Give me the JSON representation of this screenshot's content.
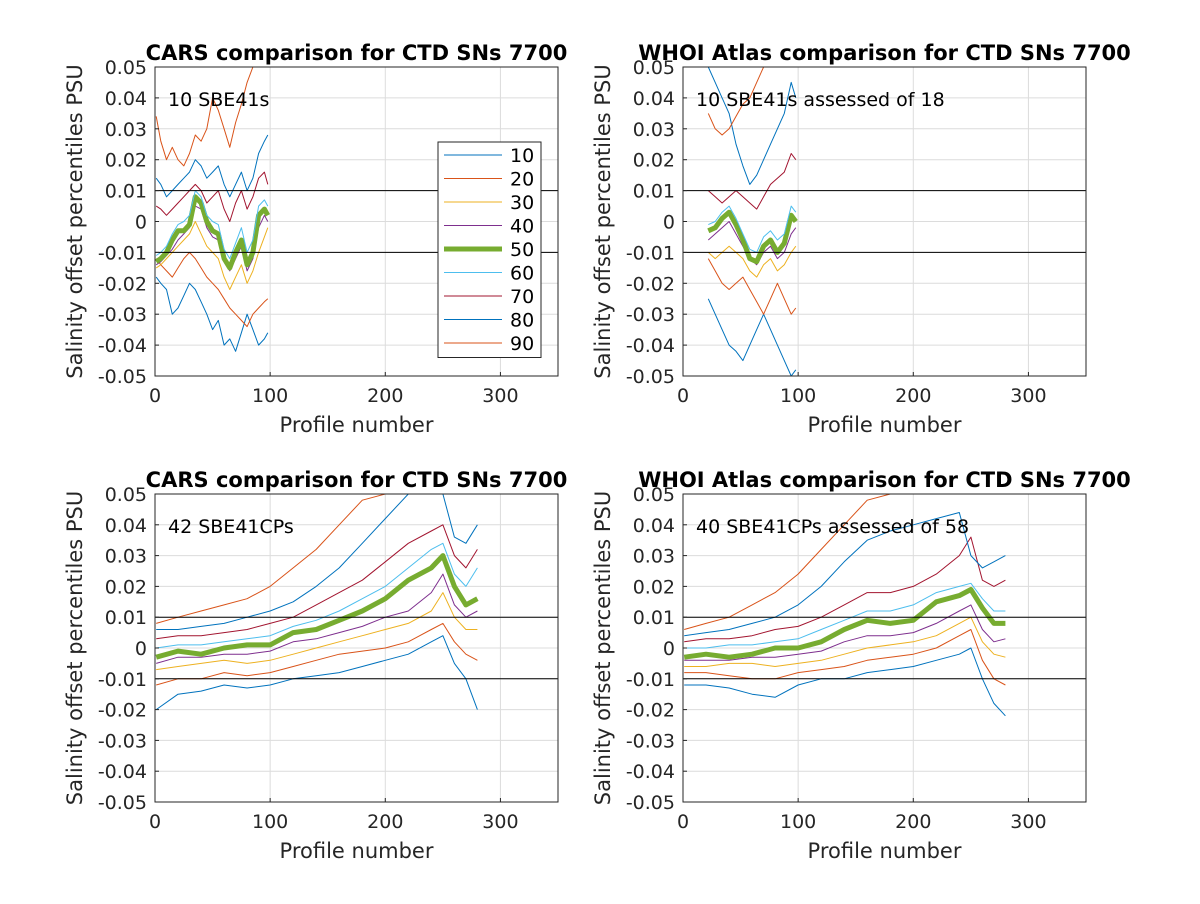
{
  "colors": {
    "p10": "#0072BD",
    "p20": "#D95319",
    "p30": "#EDB120",
    "p40": "#7E2F8E",
    "p50": "#77AC30",
    "p60": "#4DBEEE",
    "p70": "#A2142F",
    "p80": "#0072BD",
    "p90": "#D95319",
    "grid": "#dcdcdc",
    "axis": "#262626"
  },
  "legend": {
    "entries": [
      "10",
      "20",
      "30",
      "40",
      "50",
      "60",
      "70",
      "80",
      "90"
    ],
    "placement": "inside right of top-left panel"
  },
  "chart_data": [
    {
      "type": "line",
      "panel": "top-left",
      "title": "CARS comparison for CTD SNs 7700",
      "annotation": "10 SBE41s",
      "xlabel": "Profile number",
      "ylabel": "Salinity offset percentiles PSU",
      "xlim": [
        0,
        350
      ],
      "ylim": [
        -0.05,
        0.05
      ],
      "xticks": [
        "0",
        "100",
        "200",
        "300"
      ],
      "yticks": [
        "-0.05",
        "-0.04",
        "-0.03",
        "-0.02",
        "-0.01",
        "0",
        "0.01",
        "0.02",
        "0.03",
        "0.04",
        "0.05"
      ],
      "reference_lines": [
        0.01,
        -0.01
      ],
      "grid": true,
      "x": [
        1,
        5,
        10,
        15,
        20,
        25,
        30,
        35,
        40,
        45,
        50,
        55,
        60,
        65,
        70,
        75,
        80,
        85,
        90,
        95,
        98
      ],
      "series": [
        {
          "percentile": "10",
          "values": [
            -0.018,
            -0.02,
            -0.022,
            -0.03,
            -0.028,
            -0.024,
            -0.02,
            -0.022,
            -0.026,
            -0.03,
            -0.035,
            -0.032,
            -0.04,
            -0.038,
            -0.042,
            -0.036,
            -0.03,
            -0.035,
            -0.04,
            -0.038,
            -0.036
          ]
        },
        {
          "percentile": "20",
          "values": [
            -0.012,
            -0.014,
            -0.016,
            -0.018,
            -0.015,
            -0.012,
            -0.01,
            -0.012,
            -0.015,
            -0.018,
            -0.02,
            -0.022,
            -0.025,
            -0.028,
            -0.03,
            -0.032,
            -0.034,
            -0.03,
            -0.028,
            -0.026,
            -0.025
          ]
        },
        {
          "percentile": "30",
          "values": [
            -0.015,
            -0.014,
            -0.012,
            -0.01,
            -0.008,
            -0.006,
            -0.004,
            0,
            -0.004,
            -0.008,
            -0.01,
            -0.012,
            -0.018,
            -0.022,
            -0.018,
            -0.014,
            -0.02,
            -0.016,
            -0.01,
            -0.005,
            -0.002
          ]
        },
        {
          "percentile": "40",
          "values": [
            -0.014,
            -0.013,
            -0.011,
            -0.009,
            -0.006,
            -0.004,
            -0.002,
            0.005,
            0.004,
            -0.002,
            -0.005,
            -0.006,
            -0.013,
            -0.016,
            -0.012,
            -0.008,
            -0.016,
            -0.012,
            -0.002,
            0.002,
            0.0
          ]
        },
        {
          "percentile": "50",
          "values": [
            -0.013,
            -0.012,
            -0.01,
            -0.006,
            -0.003,
            -0.003,
            -0.001,
            0.008,
            0.006,
            0.0,
            -0.003,
            -0.004,
            -0.012,
            -0.015,
            -0.01,
            -0.006,
            -0.014,
            -0.01,
            0.002,
            0.004,
            0.002
          ]
        },
        {
          "percentile": "60",
          "values": [
            -0.011,
            -0.01,
            -0.008,
            -0.004,
            -0.001,
            0.0,
            0.002,
            0.01,
            0.008,
            0.002,
            0.0,
            -0.001,
            -0.009,
            -0.012,
            -0.007,
            -0.002,
            -0.01,
            -0.006,
            0.005,
            0.007,
            0.005
          ]
        },
        {
          "percentile": "70",
          "values": [
            0.005,
            0.004,
            0.002,
            0.004,
            0.006,
            0.008,
            0.01,
            0.012,
            0.01,
            0.006,
            0.008,
            0.01,
            0.004,
            0.0,
            0.006,
            0.01,
            0.004,
            0.008,
            0.014,
            0.016,
            0.012
          ]
        },
        {
          "percentile": "80",
          "values": [
            0.014,
            0.012,
            0.008,
            0.01,
            0.012,
            0.014,
            0.016,
            0.02,
            0.018,
            0.014,
            0.016,
            0.018,
            0.012,
            0.008,
            0.012,
            0.016,
            0.01,
            0.014,
            0.022,
            0.026,
            0.028
          ]
        },
        {
          "percentile": "90",
          "values": [
            0.034,
            0.026,
            0.02,
            0.024,
            0.02,
            0.018,
            0.022,
            0.028,
            0.026,
            0.03,
            0.04,
            0.036,
            0.03,
            0.024,
            0.032,
            0.038,
            0.045,
            0.05,
            0.05,
            0.05,
            0.05
          ]
        }
      ]
    },
    {
      "type": "line",
      "panel": "top-right",
      "title": "WHOI Atlas comparison for CTD SNs 7700",
      "annotation": "10 SBE41s assessed of 18",
      "xlabel": "Profile number",
      "ylabel": "Salinity offset percentiles PSU",
      "xlim": [
        0,
        350
      ],
      "ylim": [
        -0.05,
        0.05
      ],
      "xticks": [
        "0",
        "100",
        "200",
        "300"
      ],
      "yticks": [
        "-0.05",
        "-0.04",
        "-0.03",
        "-0.02",
        "-0.01",
        "0",
        "0.01",
        "0.02",
        "0.03",
        "0.04",
        "0.05"
      ],
      "reference_lines": [
        0.01,
        -0.01
      ],
      "grid": true,
      "x": [
        22,
        28,
        34,
        40,
        46,
        52,
        58,
        64,
        70,
        76,
        82,
        88,
        94,
        98
      ],
      "series": [
        {
          "percentile": "10",
          "values": [
            -0.025,
            -0.03,
            -0.035,
            -0.04,
            -0.042,
            -0.045,
            -0.04,
            -0.035,
            -0.03,
            -0.035,
            -0.04,
            -0.045,
            -0.05,
            -0.048
          ]
        },
        {
          "percentile": "20",
          "values": [
            -0.012,
            -0.016,
            -0.02,
            -0.022,
            -0.02,
            -0.018,
            -0.022,
            -0.026,
            -0.03,
            -0.025,
            -0.02,
            -0.025,
            -0.03,
            -0.028
          ]
        },
        {
          "percentile": "30",
          "values": [
            -0.01,
            -0.012,
            -0.01,
            -0.008,
            -0.01,
            -0.012,
            -0.016,
            -0.018,
            -0.014,
            -0.012,
            -0.016,
            -0.014,
            -0.01,
            -0.008
          ]
        },
        {
          "percentile": "40",
          "values": [
            -0.006,
            -0.004,
            -0.002,
            0.0,
            -0.004,
            -0.008,
            -0.012,
            -0.014,
            -0.01,
            -0.008,
            -0.012,
            -0.01,
            -0.004,
            -0.002
          ]
        },
        {
          "percentile": "50",
          "values": [
            -0.003,
            -0.002,
            0.001,
            0.003,
            -0.001,
            -0.006,
            -0.012,
            -0.013,
            -0.008,
            -0.006,
            -0.01,
            -0.007,
            0.002,
            0.0
          ]
        },
        {
          "percentile": "60",
          "values": [
            -0.001,
            0.0,
            0.003,
            0.005,
            0.001,
            -0.004,
            -0.009,
            -0.01,
            -0.005,
            -0.003,
            -0.006,
            -0.004,
            0.005,
            0.003
          ]
        },
        {
          "percentile": "70",
          "values": [
            0.01,
            0.008,
            0.006,
            0.008,
            0.01,
            0.008,
            0.006,
            0.004,
            0.008,
            0.012,
            0.014,
            0.016,
            0.022,
            0.02
          ]
        },
        {
          "percentile": "80",
          "values": [
            0.05,
            0.045,
            0.04,
            0.035,
            0.025,
            0.018,
            0.012,
            0.015,
            0.02,
            0.025,
            0.03,
            0.035,
            0.045,
            0.04
          ]
        },
        {
          "percentile": "90",
          "values": [
            0.035,
            0.03,
            0.028,
            0.03,
            0.034,
            0.038,
            0.04,
            0.045,
            0.05,
            0.05,
            0.05,
            0.05,
            0.05,
            0.05
          ]
        }
      ]
    },
    {
      "type": "line",
      "panel": "bottom-left",
      "title": "CARS comparison for CTD SNs 7700",
      "annotation": "42 SBE41CPs",
      "xlabel": "Profile number",
      "ylabel": "Salinity offset percentiles PSU",
      "xlim": [
        0,
        350
      ],
      "ylim": [
        -0.05,
        0.05
      ],
      "xticks": [
        "0",
        "100",
        "200",
        "300"
      ],
      "yticks": [
        "-0.05",
        "-0.04",
        "-0.03",
        "-0.02",
        "-0.01",
        "0",
        "0.01",
        "0.02",
        "0.03",
        "0.04",
        "0.05"
      ],
      "reference_lines": [
        0.01,
        -0.01
      ],
      "grid": true,
      "x": [
        1,
        20,
        40,
        60,
        80,
        100,
        120,
        140,
        160,
        180,
        200,
        220,
        240,
        250,
        260,
        270,
        280
      ],
      "series": [
        {
          "percentile": "10",
          "values": [
            -0.02,
            -0.015,
            -0.014,
            -0.012,
            -0.013,
            -0.012,
            -0.01,
            -0.009,
            -0.008,
            -0.006,
            -0.004,
            -0.002,
            0.002,
            0.004,
            -0.005,
            -0.01,
            -0.02
          ]
        },
        {
          "percentile": "20",
          "values": [
            -0.012,
            -0.01,
            -0.01,
            -0.008,
            -0.009,
            -0.008,
            -0.006,
            -0.004,
            -0.002,
            -0.001,
            0.0,
            0.002,
            0.006,
            0.008,
            0.002,
            -0.002,
            -0.004
          ]
        },
        {
          "percentile": "30",
          "values": [
            -0.007,
            -0.006,
            -0.005,
            -0.004,
            -0.005,
            -0.004,
            -0.002,
            0.0,
            0.002,
            0.004,
            0.006,
            0.008,
            0.012,
            0.018,
            0.01,
            0.006,
            0.006
          ]
        },
        {
          "percentile": "40",
          "values": [
            -0.005,
            -0.003,
            -0.003,
            -0.002,
            -0.002,
            -0.001,
            0.002,
            0.003,
            0.005,
            0.007,
            0.01,
            0.012,
            0.018,
            0.024,
            0.014,
            0.01,
            0.012
          ]
        },
        {
          "percentile": "50",
          "values": [
            -0.003,
            -0.001,
            -0.002,
            0.0,
            0.001,
            0.001,
            0.005,
            0.006,
            0.009,
            0.012,
            0.016,
            0.022,
            0.026,
            0.03,
            0.02,
            0.014,
            0.016
          ]
        },
        {
          "percentile": "60",
          "values": [
            0.0,
            0.001,
            0.001,
            0.002,
            0.003,
            0.004,
            0.007,
            0.009,
            0.012,
            0.016,
            0.02,
            0.026,
            0.032,
            0.034,
            0.024,
            0.02,
            0.026
          ]
        },
        {
          "percentile": "70",
          "values": [
            0.003,
            0.004,
            0.004,
            0.005,
            0.006,
            0.008,
            0.01,
            0.014,
            0.018,
            0.022,
            0.028,
            0.034,
            0.038,
            0.04,
            0.03,
            0.026,
            0.032
          ]
        },
        {
          "percentile": "80",
          "values": [
            0.006,
            0.006,
            0.007,
            0.008,
            0.01,
            0.012,
            0.015,
            0.02,
            0.026,
            0.034,
            0.042,
            0.05,
            0.05,
            0.05,
            0.036,
            0.034,
            0.04
          ]
        },
        {
          "percentile": "90",
          "values": [
            0.008,
            0.01,
            0.012,
            0.014,
            0.016,
            0.02,
            0.026,
            0.032,
            0.04,
            0.048,
            0.05,
            0.05,
            0.05,
            0.05,
            0.05,
            0.05,
            0.05
          ]
        }
      ]
    },
    {
      "type": "line",
      "panel": "bottom-right",
      "title": "WHOI Atlas comparison for CTD SNs 7700",
      "annotation": "40 SBE41CPs assessed of 58",
      "xlabel": "Profile number",
      "ylabel": "Salinity offset percentiles PSU",
      "xlim": [
        0,
        350
      ],
      "ylim": [
        -0.05,
        0.05
      ],
      "xticks": [
        "0",
        "100",
        "200",
        "300"
      ],
      "yticks": [
        "-0.05",
        "-0.04",
        "-0.03",
        "-0.02",
        "-0.01",
        "0",
        "0.01",
        "0.02",
        "0.03",
        "0.04",
        "0.05"
      ],
      "reference_lines": [
        0.01,
        -0.01
      ],
      "grid": true,
      "x": [
        1,
        20,
        40,
        60,
        80,
        100,
        120,
        140,
        160,
        180,
        200,
        220,
        240,
        250,
        260,
        270,
        280
      ],
      "series": [
        {
          "percentile": "10",
          "values": [
            -0.012,
            -0.012,
            -0.013,
            -0.015,
            -0.016,
            -0.012,
            -0.01,
            -0.01,
            -0.008,
            -0.007,
            -0.006,
            -0.004,
            -0.002,
            0.0,
            -0.01,
            -0.018,
            -0.022
          ]
        },
        {
          "percentile": "20",
          "values": [
            -0.008,
            -0.008,
            -0.009,
            -0.01,
            -0.01,
            -0.008,
            -0.007,
            -0.006,
            -0.004,
            -0.003,
            -0.002,
            0.0,
            0.004,
            0.006,
            -0.004,
            -0.01,
            -0.012
          ]
        },
        {
          "percentile": "30",
          "values": [
            -0.006,
            -0.006,
            -0.005,
            -0.005,
            -0.006,
            -0.005,
            -0.004,
            -0.002,
            0.0,
            0.001,
            0.002,
            0.004,
            0.008,
            0.01,
            0.002,
            -0.002,
            -0.003
          ]
        },
        {
          "percentile": "40",
          "values": [
            -0.004,
            -0.004,
            -0.004,
            -0.003,
            -0.003,
            -0.002,
            -0.001,
            0.002,
            0.004,
            0.004,
            0.005,
            0.008,
            0.012,
            0.014,
            0.006,
            0.002,
            0.003
          ]
        },
        {
          "percentile": "50",
          "values": [
            -0.003,
            -0.002,
            -0.003,
            -0.002,
            0.0,
            0.0,
            0.002,
            0.006,
            0.009,
            0.008,
            0.009,
            0.015,
            0.017,
            0.019,
            0.013,
            0.008,
            0.008
          ]
        },
        {
          "percentile": "60",
          "values": [
            0.0,
            0.0,
            0.001,
            0.001,
            0.002,
            0.003,
            0.006,
            0.009,
            0.012,
            0.012,
            0.014,
            0.018,
            0.02,
            0.021,
            0.016,
            0.012,
            0.012
          ]
        },
        {
          "percentile": "70",
          "values": [
            0.002,
            0.003,
            0.003,
            0.004,
            0.006,
            0.007,
            0.01,
            0.014,
            0.018,
            0.018,
            0.02,
            0.024,
            0.03,
            0.036,
            0.022,
            0.02,
            0.022
          ]
        },
        {
          "percentile": "80",
          "values": [
            0.004,
            0.005,
            0.006,
            0.008,
            0.01,
            0.014,
            0.02,
            0.028,
            0.035,
            0.038,
            0.04,
            0.042,
            0.044,
            0.03,
            0.026,
            0.028,
            0.03
          ]
        },
        {
          "percentile": "90",
          "values": [
            0.006,
            0.008,
            0.01,
            0.014,
            0.018,
            0.024,
            0.032,
            0.04,
            0.048,
            0.05,
            0.05,
            0.05,
            0.05,
            0.05,
            0.05,
            0.05,
            0.05
          ]
        }
      ]
    }
  ]
}
